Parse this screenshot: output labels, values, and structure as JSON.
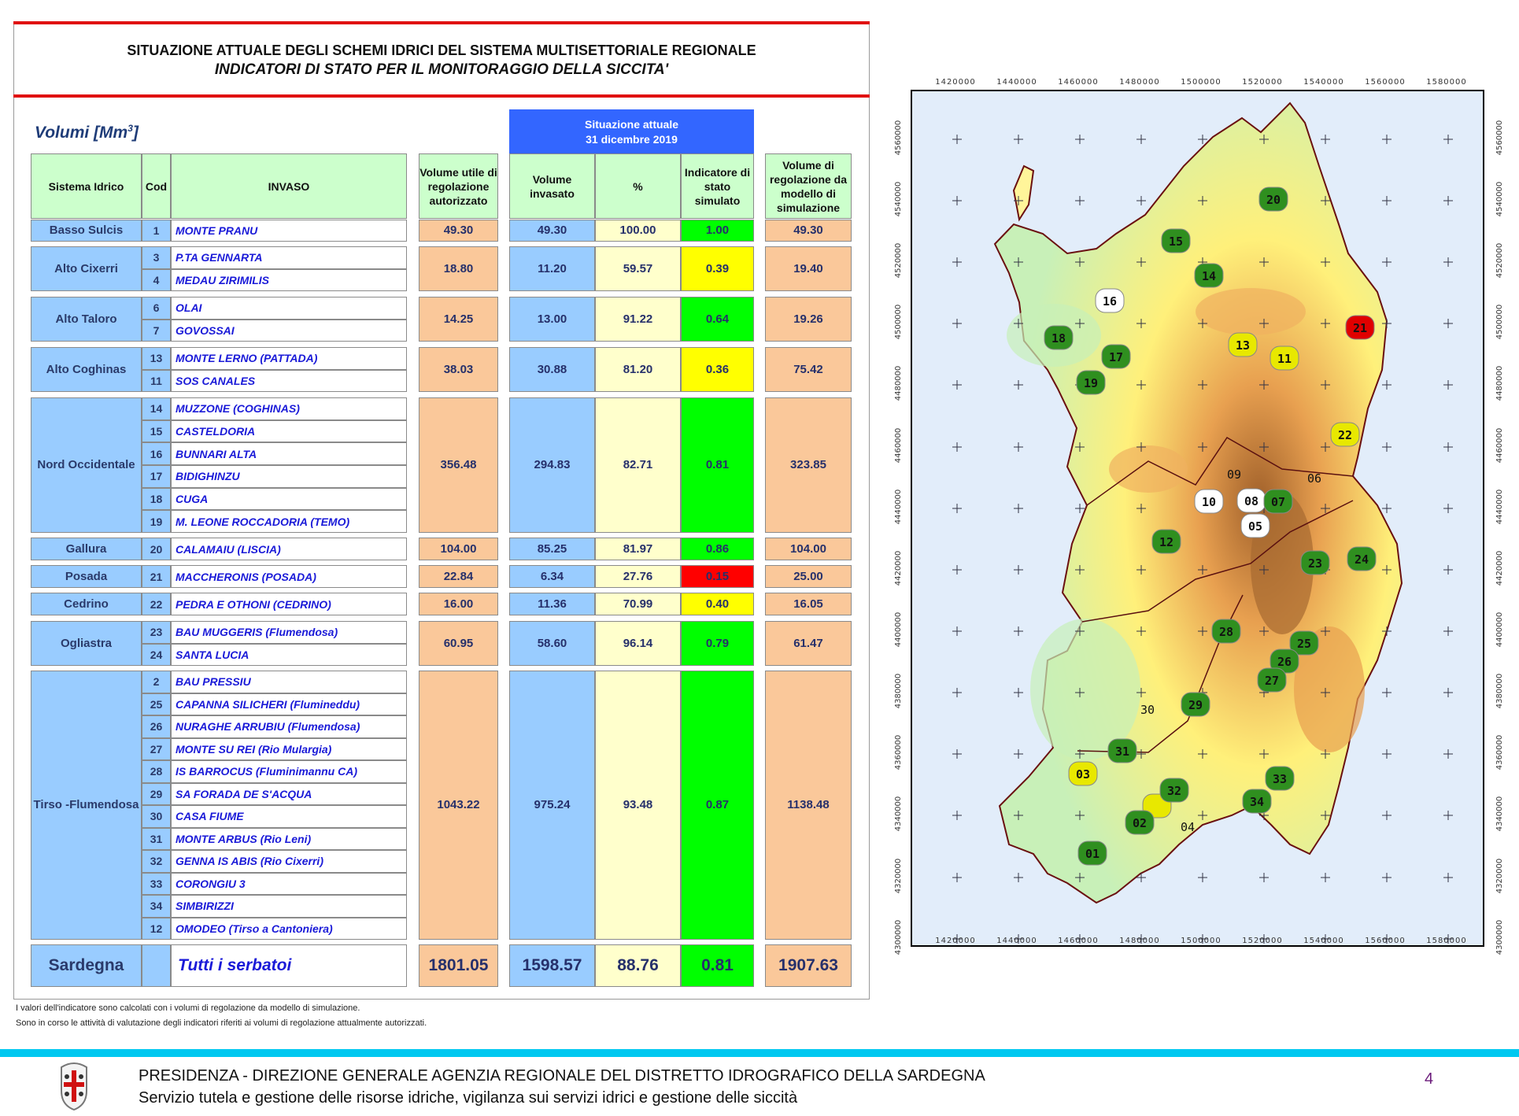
{
  "header": {
    "title": "SITUAZIONE ATTUALE DEGLI SCHEMI IDRICI DEL SISTEMA MULTISETTORIALE REGIONALE",
    "subtitle": "INDICATORI DI STATO PER IL MONITORAGGIO DELLA SICCITA'"
  },
  "units_label": "Volumi [Mm",
  "units_exp": "3",
  "units_close": "]",
  "situazione": {
    "line1": "Situazione attuale",
    "line2": "31 dicembre 2019"
  },
  "columns": {
    "sistema": "Sistema Idrico",
    "cod": "Cod",
    "invaso": "INVASO",
    "vol_utile": "Volume utile di regolazione autorizzato",
    "vol_invasato": "Volume invasato",
    "perc": "%",
    "indicatore": "Indicatore di stato simulato",
    "vol_reg": "Volume di regolazione da modello di simulazione"
  },
  "colors": {
    "green": "#00ff00",
    "yellow": "#ffff00",
    "red": "#ff0000"
  },
  "groups": [
    {
      "sistema": "Basso Sulcis",
      "rows": [
        {
          "cod": "1",
          "invaso": "MONTE PRANU"
        }
      ],
      "vol_utile": "49.30",
      "vol_invasato": "49.30",
      "perc": "100.00",
      "indicatore": "1.00",
      "status": "green",
      "vol_reg": "49.30"
    },
    {
      "sistema": "Alto Cixerri",
      "rows": [
        {
          "cod": "3",
          "invaso": "P.TA GENNARTA"
        },
        {
          "cod": "4",
          "invaso": "MEDAU ZIRIMILIS"
        }
      ],
      "vol_utile": "18.80",
      "vol_invasato": "11.20",
      "perc": "59.57",
      "indicatore": "0.39",
      "status": "yellow",
      "vol_reg": "19.40"
    },
    {
      "sistema": "Alto Taloro",
      "rows": [
        {
          "cod": "6",
          "invaso": "OLAI"
        },
        {
          "cod": "7",
          "invaso": "GOVOSSAI"
        }
      ],
      "vol_utile": "14.25",
      "vol_invasato": "13.00",
      "perc": "91.22",
      "indicatore": "0.64",
      "status": "green",
      "vol_reg": "19.26"
    },
    {
      "sistema": "Alto Coghinas",
      "rows": [
        {
          "cod": "13",
          "invaso": "MONTE LERNO (PATTADA)"
        },
        {
          "cod": "11",
          "invaso": "SOS CANALES"
        }
      ],
      "vol_utile": "38.03",
      "vol_invasato": "30.88",
      "perc": "81.20",
      "indicatore": "0.36",
      "status": "yellow",
      "vol_reg": "75.42"
    },
    {
      "sistema": "Nord Occidentale",
      "rows": [
        {
          "cod": "14",
          "invaso": "MUZZONE (COGHINAS)"
        },
        {
          "cod": "15",
          "invaso": "CASTELDORIA"
        },
        {
          "cod": "16",
          "invaso": "BUNNARI ALTA"
        },
        {
          "cod": "17",
          "invaso": "BIDIGHINZU"
        },
        {
          "cod": "18",
          "invaso": "CUGA"
        },
        {
          "cod": "19",
          "invaso": "M. LEONE ROCCADORIA (TEMO)"
        }
      ],
      "vol_utile": "356.48",
      "vol_invasato": "294.83",
      "perc": "82.71",
      "indicatore": "0.81",
      "status": "green",
      "vol_reg": "323.85"
    },
    {
      "sistema": "Gallura",
      "rows": [
        {
          "cod": "20",
          "invaso": "CALAMAIU (LISCIA)"
        }
      ],
      "vol_utile": "104.00",
      "vol_invasato": "85.25",
      "perc": "81.97",
      "indicatore": "0.86",
      "status": "green",
      "vol_reg": "104.00"
    },
    {
      "sistema": "Posada",
      "rows": [
        {
          "cod": "21",
          "invaso": "MACCHERONIS (POSADA)"
        }
      ],
      "vol_utile": "22.84",
      "vol_invasato": "6.34",
      "perc": "27.76",
      "indicatore": "0.15",
      "status": "red",
      "vol_reg": "25.00"
    },
    {
      "sistema": "Cedrino",
      "rows": [
        {
          "cod": "22",
          "invaso": "PEDRA E OTHONI (CEDRINO)"
        }
      ],
      "vol_utile": "16.00",
      "vol_invasato": "11.36",
      "perc": "70.99",
      "indicatore": "0.40",
      "status": "yellow",
      "vol_reg": "16.05"
    },
    {
      "sistema": "Ogliastra",
      "rows": [
        {
          "cod": "23",
          "invaso": "BAU MUGGERIS (Flumendosa)"
        },
        {
          "cod": "24",
          "invaso": "SANTA LUCIA"
        }
      ],
      "vol_utile": "60.95",
      "vol_invasato": "58.60",
      "perc": "96.14",
      "indicatore": "0.79",
      "status": "green",
      "vol_reg": "61.47"
    },
    {
      "sistema": "Tirso -Flumendosa",
      "rows": [
        {
          "cod": "2",
          "invaso": "BAU PRESSIU"
        },
        {
          "cod": "25",
          "invaso": "CAPANNA SILICHERI (Flumineddu)"
        },
        {
          "cod": "26",
          "invaso": "NURAGHE ARRUBIU (Flumendosa)"
        },
        {
          "cod": "27",
          "invaso": "MONTE SU REI (Rio Mulargia)"
        },
        {
          "cod": "28",
          "invaso": "IS BARROCUS (Fluminimannu CA)"
        },
        {
          "cod": "29",
          "invaso": "SA FORADA DE S'ACQUA"
        },
        {
          "cod": "30",
          "invaso": "CASA FIUME"
        },
        {
          "cod": "31",
          "invaso": "MONTE ARBUS  (Rio Leni)"
        },
        {
          "cod": "32",
          "invaso": "GENNA IS ABIS  (Rio Cixerri)"
        },
        {
          "cod": "33",
          "invaso": "CORONGIU 3"
        },
        {
          "cod": "34",
          "invaso": "SIMBIRIZZI"
        },
        {
          "cod": "12",
          "invaso": "OMODEO (Tirso a Cantoniera)"
        }
      ],
      "vol_utile": "1043.22",
      "vol_invasato": "975.24",
      "perc": "93.48",
      "indicatore": "0.87",
      "status": "green",
      "vol_reg": "1138.48"
    }
  ],
  "total": {
    "sistema": "Sardegna",
    "invaso": "Tutti i serbatoi",
    "vol_utile": "1801.05",
    "vol_invasato": "1598.57",
    "perc": "88.76",
    "indicatore": "0.81",
    "status": "green",
    "vol_reg": "1907.63"
  },
  "footnotes": [
    "I valori dell'indicatore sono calcolati con i volumi di regolazione da modello di simulazione.",
    "Sono in corso le attività di valutazione degli indicatori riferiti ai volumi di regolazione attualmente autorizzati."
  ],
  "footer": {
    "line1": "PRESIDENZA - DIREZIONE GENERALE AGENZIA REGIONALE DEL DISTRETTO IDROGRAFICO DELLA SARDEGNA",
    "line2": "Servizio tutela e gestione delle risorse idriche, vigilanza sui servizi idrici e gestione delle siccità",
    "page": "4"
  },
  "map": {
    "x_labels": [
      "1420000",
      "1440000",
      "1460000",
      "1480000",
      "1500000",
      "1520000",
      "1540000",
      "1560000",
      "1580000"
    ],
    "y_labels": [
      "4560000",
      "4540000",
      "4520000",
      "4500000",
      "4480000",
      "4460000",
      "4440000",
      "4420000",
      "4400000",
      "4380000",
      "4360000",
      "4340000",
      "4320000",
      "4300000"
    ],
    "markers": [
      {
        "code": "20",
        "status": "green"
      },
      {
        "code": "15",
        "status": "green"
      },
      {
        "code": "14",
        "status": "green"
      },
      {
        "code": "16",
        "status": "white"
      },
      {
        "code": "21",
        "status": "red"
      },
      {
        "code": "18",
        "status": "green"
      },
      {
        "code": "13",
        "status": "yellow"
      },
      {
        "code": "17",
        "status": "green"
      },
      {
        "code": "11",
        "status": "yellow"
      },
      {
        "code": "19",
        "status": "green"
      },
      {
        "code": "22",
        "status": "yellow"
      },
      {
        "code": "10",
        "status": "white"
      },
      {
        "code": "08",
        "status": "white"
      },
      {
        "code": "07",
        "status": "green"
      },
      {
        "code": "05",
        "status": "white"
      },
      {
        "code": "12",
        "status": "green"
      },
      {
        "code": "23",
        "status": "green"
      },
      {
        "code": "24",
        "status": "green"
      },
      {
        "code": "28",
        "status": "green"
      },
      {
        "code": "25",
        "status": "green"
      },
      {
        "code": "26",
        "status": "green"
      },
      {
        "code": "27",
        "status": "green"
      },
      {
        "code": "29",
        "status": "green"
      },
      {
        "code": "31",
        "status": "green"
      },
      {
        "code": "03",
        "status": "yellow"
      },
      {
        "code": "04",
        "status": "yellow"
      },
      {
        "code": "32",
        "status": "green"
      },
      {
        "code": "33",
        "status": "green"
      },
      {
        "code": "34",
        "status": "green"
      },
      {
        "code": "02",
        "status": "green"
      },
      {
        "code": "01",
        "status": "green"
      }
    ],
    "callouts": [
      {
        "code": "09"
      },
      {
        "code": "06"
      },
      {
        "code": "30"
      },
      {
        "code": "04"
      }
    ]
  }
}
